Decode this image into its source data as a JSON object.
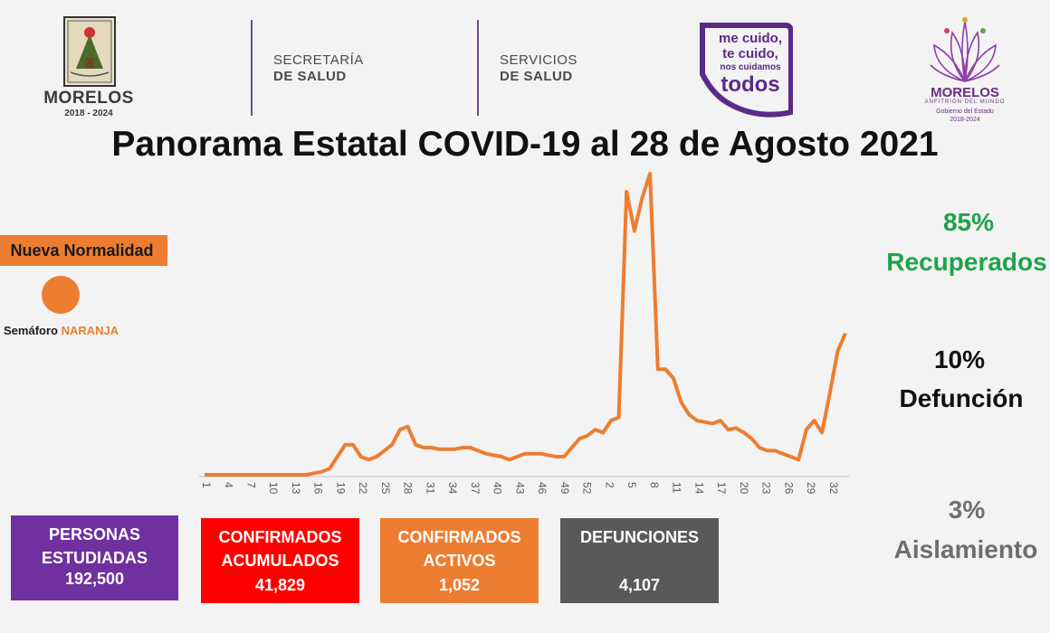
{
  "header": {
    "state_logo": {
      "name": "MORELOS",
      "years": "2018 - 2024"
    },
    "secretaria": {
      "line1": "SECRETARÍA",
      "line2": "DE SALUD"
    },
    "servicios": {
      "line1": "SERVICIOS",
      "line2": "DE SALUD"
    },
    "campaign": {
      "line1": "me cuido,",
      "line2": "te cuido,",
      "line3": "nos cuidamos",
      "line4": "todos"
    },
    "gov_logo": {
      "name": "MORELOS",
      "tagline": "ANFITRIÓN DEL MUNDO",
      "sub1": "Gobierno del Estado",
      "sub2": "2018-2024"
    }
  },
  "title": "Panorama Estatal COVID-19 al 28 de Agosto 2021",
  "status": {
    "badge": "Nueva Normalidad",
    "semaforo_label": "Semáforo",
    "semaforo_color_name": "NARANJA",
    "semaforo_color": "#ed7d31"
  },
  "stats": {
    "recuperados": {
      "pct": "85%",
      "label": "Recuperados",
      "color": "#1ea34a"
    },
    "defuncion": {
      "pct": "10%",
      "label": "Defunción",
      "color": "#111111"
    },
    "aislamiento": {
      "pct": "3%",
      "label": "Aislamiento",
      "color": "#6e6e6e"
    }
  },
  "cards": {
    "personas": {
      "label1": "PERSONAS",
      "label2": "ESTUDIADAS",
      "value": "192,500",
      "color": "#7030a0"
    },
    "acumulados": {
      "label1": "CONFIRMADOS",
      "label2": "ACUMULADOS",
      "value": "41,829",
      "color": "#ff0000"
    },
    "activos": {
      "label1": "CONFIRMADOS",
      "label2": "ACTIVOS",
      "value": "1,052",
      "color": "#ed7d31"
    },
    "defunciones": {
      "label1": "DEFUNCIONES",
      "label2": "",
      "value": "4,107",
      "color": "#595959"
    }
  },
  "chart_data": {
    "type": "line",
    "series_color": "#ed7d31",
    "grid": false,
    "xlabel": "",
    "ylabel": "",
    "x_tick_labels": [
      "1",
      "4",
      "7",
      "10",
      "13",
      "16",
      "19",
      "22",
      "25",
      "28",
      "31",
      "34",
      "37",
      "40",
      "43",
      "46",
      "49",
      "52",
      "2",
      "5",
      "8",
      "11",
      "14",
      "17",
      "20",
      "23",
      "26",
      "29",
      "32"
    ],
    "ylim": [
      0,
      100
    ],
    "values": [
      0,
      0,
      0,
      0,
      0,
      0,
      0,
      0,
      0,
      0,
      0,
      0,
      0,
      0,
      0.5,
      1,
      2,
      6,
      10,
      10,
      6,
      5,
      6,
      8,
      10,
      15,
      16,
      10,
      9,
      9,
      8.5,
      8.5,
      8.5,
      9,
      9,
      8,
      7,
      6.5,
      6,
      5,
      6,
      7,
      7,
      7,
      6.5,
      6,
      6,
      9,
      12,
      13,
      15,
      14,
      18,
      19,
      94,
      81,
      92,
      100,
      35,
      35,
      32,
      24,
      20,
      18,
      17.5,
      17,
      18,
      15,
      15.5,
      14,
      12,
      9,
      8,
      8,
      7,
      6,
      5,
      15,
      18,
      14,
      27,
      41,
      47
    ]
  }
}
